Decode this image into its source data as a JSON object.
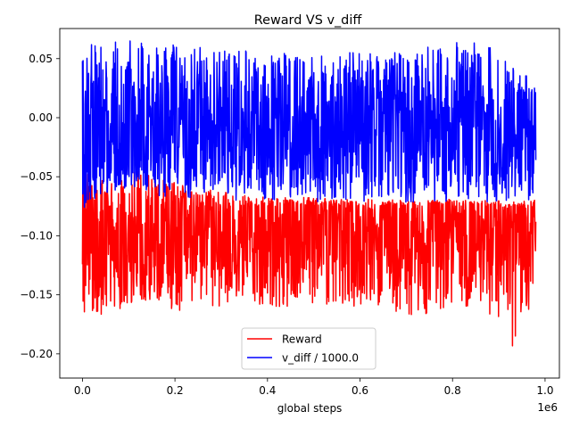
{
  "chart_data": {
    "type": "line",
    "title": "Reward VS v_diff",
    "xlabel": "global steps",
    "ylabel": "",
    "x_offset_label": "1e6",
    "xlim": [
      -0.049,
      1.031
    ],
    "ylim": [
      -0.2205,
      0.0755
    ],
    "x_ticks": [
      0.0,
      0.2,
      0.4,
      0.6,
      0.8,
      1.0
    ],
    "x_tick_labels": [
      "0.0",
      "0.2",
      "0.4",
      "0.6",
      "0.8",
      "1.0"
    ],
    "y_ticks": [
      -0.2,
      -0.15,
      -0.1,
      -0.05,
      0.0,
      0.05
    ],
    "y_tick_labels": [
      "−0.20",
      "−0.15",
      "−0.10",
      "−0.05",
      "0.00",
      "0.05"
    ],
    "grid": false,
    "legend_position": "bottom-center",
    "series": [
      {
        "name": "Reward",
        "color": "#ff0000",
        "x": [
          0.0,
          0.01,
          0.02,
          0.05,
          0.1,
          0.12,
          0.15,
          0.2,
          0.25,
          0.3,
          0.35,
          0.4,
          0.45,
          0.5,
          0.55,
          0.6,
          0.65,
          0.7,
          0.75,
          0.8,
          0.85,
          0.9,
          0.93,
          0.95,
          0.98
        ],
        "upper": [
          -0.05,
          -0.045,
          -0.055,
          -0.05,
          -0.045,
          -0.04,
          -0.05,
          -0.055,
          -0.06,
          -0.062,
          -0.065,
          -0.067,
          -0.067,
          -0.068,
          -0.069,
          -0.069,
          -0.069,
          -0.07,
          -0.07,
          -0.069,
          -0.07,
          -0.07,
          -0.07,
          -0.07,
          -0.068
        ],
        "lower": [
          -0.155,
          -0.185,
          -0.17,
          -0.165,
          -0.16,
          -0.155,
          -0.155,
          -0.165,
          -0.16,
          -0.16,
          -0.155,
          -0.16,
          -0.16,
          -0.16,
          -0.16,
          -0.16,
          -0.165,
          -0.17,
          -0.17,
          -0.16,
          -0.165,
          -0.17,
          -0.205,
          -0.165,
          -0.16
        ],
        "core_upper": -0.075,
        "core_lower": -0.125
      },
      {
        "name": "v_diff / 1000.0",
        "color": "#0000ff",
        "x": [
          0.0,
          0.01,
          0.02,
          0.05,
          0.1,
          0.12,
          0.15,
          0.2,
          0.25,
          0.3,
          0.35,
          0.4,
          0.45,
          0.5,
          0.55,
          0.6,
          0.65,
          0.7,
          0.75,
          0.8,
          0.85,
          0.9,
          0.93,
          0.95,
          0.98
        ],
        "upper": [
          0.06,
          0.065,
          0.065,
          0.066,
          0.066,
          0.065,
          0.064,
          0.062,
          0.06,
          0.058,
          0.057,
          0.055,
          0.058,
          0.057,
          0.056,
          0.055,
          0.055,
          0.056,
          0.06,
          0.066,
          0.065,
          0.058,
          0.05,
          0.045,
          0.028
        ],
        "lower": [
          -0.08,
          -0.07,
          -0.07,
          -0.065,
          -0.06,
          -0.06,
          -0.065,
          -0.068,
          -0.068,
          -0.07,
          -0.07,
          -0.07,
          -0.071,
          -0.071,
          -0.072,
          -0.072,
          -0.072,
          -0.072,
          -0.072,
          -0.072,
          -0.072,
          -0.072,
          -0.072,
          -0.072,
          -0.07
        ],
        "core_upper": 0.02,
        "core_lower": -0.04
      }
    ]
  }
}
